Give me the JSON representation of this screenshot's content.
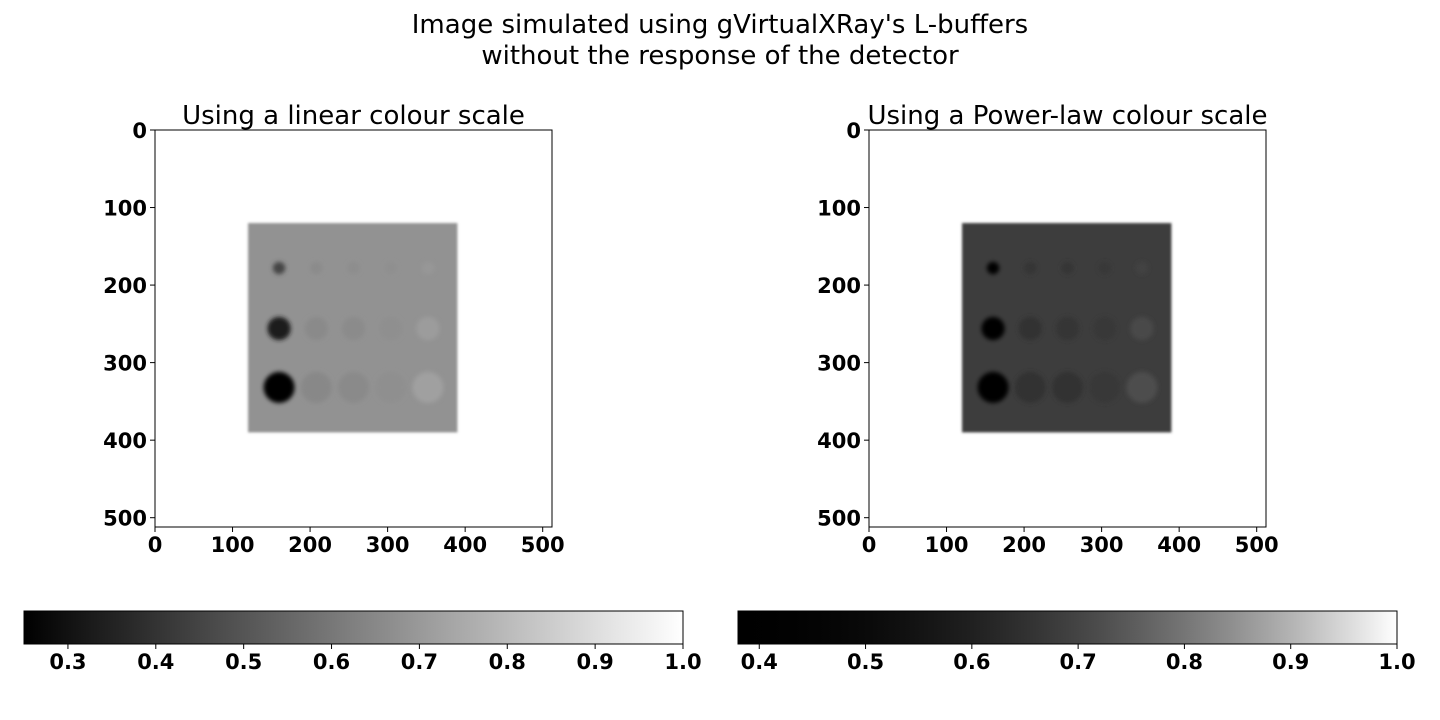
{
  "figure": {
    "title_line1": "Image simulated using gVirtualXRay's L-buffers",
    "title_line2": "without the response of the detector"
  },
  "chart_data": [
    {
      "type": "heatmap",
      "title": "Using a linear colour scale",
      "colormap": "gray",
      "color_scale": "linear",
      "xlim": [
        0,
        512
      ],
      "ylim": [
        512,
        0
      ],
      "x_ticks": [
        0,
        100,
        200,
        300,
        400,
        500
      ],
      "y_ticks": [
        0,
        100,
        200,
        300,
        400,
        500
      ],
      "background_value": 1.0,
      "phantom": {
        "x0": 120,
        "x1": 390,
        "y0": 120,
        "y1": 390,
        "value": 0.68
      },
      "inserts": [
        {
          "x": 160,
          "y": 178,
          "r": 8,
          "value": 0.45
        },
        {
          "x": 208,
          "y": 178,
          "r": 8,
          "value": 0.66
        },
        {
          "x": 256,
          "y": 178,
          "r": 8,
          "value": 0.665
        },
        {
          "x": 304,
          "y": 178,
          "r": 8,
          "value": 0.67
        },
        {
          "x": 352,
          "y": 178,
          "r": 8,
          "value": 0.695
        },
        {
          "x": 160,
          "y": 256,
          "r": 15,
          "value": 0.34
        },
        {
          "x": 208,
          "y": 256,
          "r": 15,
          "value": 0.655
        },
        {
          "x": 256,
          "y": 256,
          "r": 15,
          "value": 0.66
        },
        {
          "x": 304,
          "y": 256,
          "r": 15,
          "value": 0.67
        },
        {
          "x": 352,
          "y": 256,
          "r": 15,
          "value": 0.71
        },
        {
          "x": 160,
          "y": 332,
          "r": 20,
          "value": 0.26
        },
        {
          "x": 208,
          "y": 332,
          "r": 20,
          "value": 0.65
        },
        {
          "x": 256,
          "y": 332,
          "r": 20,
          "value": 0.655
        },
        {
          "x": 304,
          "y": 332,
          "r": 20,
          "value": 0.67
        },
        {
          "x": 352,
          "y": 332,
          "r": 20,
          "value": 0.72
        }
      ],
      "colorbar": {
        "min": 0.25,
        "max": 1.0,
        "ticks": [
          "0.3",
          "0.4",
          "0.5",
          "0.6",
          "0.7",
          "0.8",
          "0.9",
          "1.0"
        ],
        "tick_values": [
          0.3,
          0.4,
          0.5,
          0.6,
          0.7,
          0.8,
          0.9,
          1.0
        ]
      }
    },
    {
      "type": "heatmap",
      "title": "Using a Power-law colour scale",
      "colormap": "gray",
      "color_scale": "power-law",
      "gamma": 2.0,
      "xlim": [
        0,
        512
      ],
      "ylim": [
        512,
        0
      ],
      "x_ticks": [
        0,
        100,
        200,
        300,
        400,
        500
      ],
      "y_ticks": [
        0,
        100,
        200,
        300,
        400,
        500
      ],
      "background_value": 1.0,
      "phantom": {
        "x0": 120,
        "x1": 390,
        "y0": 120,
        "y1": 390,
        "value": 0.68
      },
      "inserts": [
        {
          "x": 160,
          "y": 178,
          "r": 8,
          "value": 0.45
        },
        {
          "x": 208,
          "y": 178,
          "r": 8,
          "value": 0.66
        },
        {
          "x": 256,
          "y": 178,
          "r": 8,
          "value": 0.665
        },
        {
          "x": 304,
          "y": 178,
          "r": 8,
          "value": 0.67
        },
        {
          "x": 352,
          "y": 178,
          "r": 8,
          "value": 0.695
        },
        {
          "x": 160,
          "y": 256,
          "r": 15,
          "value": 0.34
        },
        {
          "x": 208,
          "y": 256,
          "r": 15,
          "value": 0.655
        },
        {
          "x": 256,
          "y": 256,
          "r": 15,
          "value": 0.66
        },
        {
          "x": 304,
          "y": 256,
          "r": 15,
          "value": 0.67
        },
        {
          "x": 352,
          "y": 256,
          "r": 15,
          "value": 0.71
        },
        {
          "x": 160,
          "y": 332,
          "r": 20,
          "value": 0.26
        },
        {
          "x": 208,
          "y": 332,
          "r": 20,
          "value": 0.65
        },
        {
          "x": 256,
          "y": 332,
          "r": 20,
          "value": 0.655
        },
        {
          "x": 304,
          "y": 332,
          "r": 20,
          "value": 0.67
        },
        {
          "x": 352,
          "y": 332,
          "r": 20,
          "value": 0.72
        }
      ],
      "colorbar": {
        "min": 0.38,
        "max": 1.0,
        "ticks": [
          "0.4",
          "0.5",
          "0.6",
          "0.7",
          "0.8",
          "0.9",
          "1.0"
        ],
        "tick_values": [
          0.4,
          0.5,
          0.6,
          0.7,
          0.8,
          0.9,
          1.0
        ]
      }
    }
  ]
}
